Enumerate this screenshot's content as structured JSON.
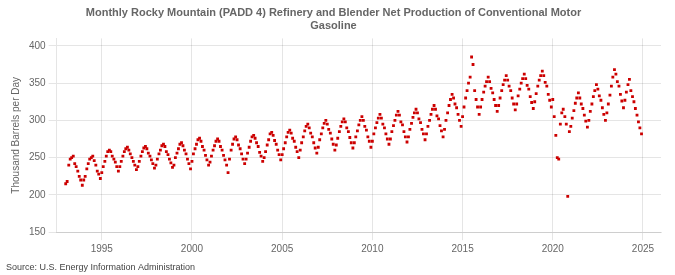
{
  "chart_data": {
    "type": "scatter",
    "title": "Monthly Rocky Mountain (PADD 4) Refinery and Blender Net Production of Conventional Motor\nGasoline",
    "ylabel": "Thousand Barrels per Day",
    "annotations": [
      "Source: U.S. Energy Information Administration"
    ],
    "color": "#cc0000",
    "marker": "square",
    "grid": true,
    "xlim": [
      1992.5,
      2026.0
    ],
    "ylim": [
      150,
      410
    ],
    "xticks": [
      1995,
      2000,
      2005,
      2010,
      2015,
      2020,
      2025
    ],
    "yticks": [
      150,
      200,
      250,
      300,
      350,
      400
    ],
    "x": [
      1993.0,
      1993.08,
      1993.17,
      1993.25,
      1993.33,
      1993.42,
      1993.5,
      1993.58,
      1993.67,
      1993.75,
      1993.83,
      1993.92,
      1994.0,
      1994.08,
      1994.17,
      1994.25,
      1994.33,
      1994.42,
      1994.5,
      1994.58,
      1994.67,
      1994.75,
      1994.83,
      1994.92,
      1995.0,
      1995.08,
      1995.17,
      1995.25,
      1995.33,
      1995.42,
      1995.5,
      1995.58,
      1995.67,
      1995.75,
      1995.83,
      1995.92,
      1996.0,
      1996.08,
      1996.17,
      1996.25,
      1996.33,
      1996.42,
      1996.5,
      1996.58,
      1996.67,
      1996.75,
      1996.83,
      1996.92,
      1997.0,
      1997.08,
      1997.17,
      1997.25,
      1997.33,
      1997.42,
      1997.5,
      1997.58,
      1997.67,
      1997.75,
      1997.83,
      1997.92,
      1998.0,
      1998.08,
      1998.17,
      1998.25,
      1998.33,
      1998.42,
      1998.5,
      1998.58,
      1998.67,
      1998.75,
      1998.83,
      1998.92,
      1999.0,
      1999.08,
      1999.17,
      1999.25,
      1999.33,
      1999.42,
      1999.5,
      1999.58,
      1999.67,
      1999.75,
      1999.83,
      1999.92,
      2000.0,
      2000.08,
      2000.17,
      2000.25,
      2000.33,
      2000.42,
      2000.5,
      2000.58,
      2000.67,
      2000.75,
      2000.83,
      2000.92,
      2001.0,
      2001.08,
      2001.17,
      2001.25,
      2001.33,
      2001.42,
      2001.5,
      2001.58,
      2001.67,
      2001.75,
      2001.83,
      2001.92,
      2002.0,
      2002.08,
      2002.17,
      2002.25,
      2002.33,
      2002.42,
      2002.5,
      2002.58,
      2002.67,
      2002.75,
      2002.83,
      2002.92,
      2003.0,
      2003.08,
      2003.17,
      2003.25,
      2003.33,
      2003.42,
      2003.5,
      2003.58,
      2003.67,
      2003.75,
      2003.83,
      2003.92,
      2004.0,
      2004.08,
      2004.17,
      2004.25,
      2004.33,
      2004.42,
      2004.5,
      2004.58,
      2004.67,
      2004.75,
      2004.83,
      2004.92,
      2005.0,
      2005.08,
      2005.17,
      2005.25,
      2005.33,
      2005.42,
      2005.5,
      2005.58,
      2005.67,
      2005.75,
      2005.83,
      2005.92,
      2006.0,
      2006.08,
      2006.17,
      2006.25,
      2006.33,
      2006.42,
      2006.5,
      2006.58,
      2006.67,
      2006.75,
      2006.83,
      2006.92,
      2007.0,
      2007.08,
      2007.17,
      2007.25,
      2007.33,
      2007.42,
      2007.5,
      2007.58,
      2007.67,
      2007.75,
      2007.83,
      2007.92,
      2008.0,
      2008.08,
      2008.17,
      2008.25,
      2008.33,
      2008.42,
      2008.5,
      2008.58,
      2008.67,
      2008.75,
      2008.83,
      2008.92,
      2009.0,
      2009.08,
      2009.17,
      2009.25,
      2009.33,
      2009.42,
      2009.5,
      2009.58,
      2009.67,
      2009.75,
      2009.83,
      2009.92,
      2010.0,
      2010.08,
      2010.17,
      2010.25,
      2010.33,
      2010.42,
      2010.5,
      2010.58,
      2010.67,
      2010.75,
      2010.83,
      2010.92,
      2011.0,
      2011.08,
      2011.17,
      2011.25,
      2011.33,
      2011.42,
      2011.5,
      2011.58,
      2011.67,
      2011.75,
      2011.83,
      2011.92,
      2012.0,
      2012.08,
      2012.17,
      2012.25,
      2012.33,
      2012.42,
      2012.5,
      2012.58,
      2012.67,
      2012.75,
      2012.83,
      2012.92,
      2013.0,
      2013.08,
      2013.17,
      2013.25,
      2013.33,
      2013.42,
      2013.5,
      2013.58,
      2013.67,
      2013.75,
      2013.83,
      2013.92,
      2014.0,
      2014.08,
      2014.17,
      2014.25,
      2014.33,
      2014.42,
      2014.5,
      2014.58,
      2014.67,
      2014.75,
      2014.83,
      2014.92,
      2015.0,
      2015.08,
      2015.17,
      2015.25,
      2015.33,
      2015.42,
      2015.5,
      2015.58,
      2015.67,
      2015.75,
      2015.83,
      2015.92,
      2016.0,
      2016.08,
      2016.17,
      2016.25,
      2016.33,
      2016.42,
      2016.5,
      2016.58,
      2016.67,
      2016.75,
      2016.83,
      2016.92,
      2017.0,
      2017.08,
      2017.17,
      2017.25,
      2017.33,
      2017.42,
      2017.5,
      2017.58,
      2017.67,
      2017.75,
      2017.83,
      2017.92,
      2018.0,
      2018.08,
      2018.17,
      2018.25,
      2018.33,
      2018.42,
      2018.5,
      2018.58,
      2018.67,
      2018.75,
      2018.83,
      2018.92,
      2019.0,
      2019.08,
      2019.17,
      2019.25,
      2019.33,
      2019.42,
      2019.5,
      2019.58,
      2019.67,
      2019.75,
      2019.83,
      2019.92,
      2020.0,
      2020.08,
      2020.17,
      2020.25,
      2020.33,
      2020.42,
      2020.5,
      2020.58,
      2020.67,
      2020.75,
      2020.83,
      2020.92,
      2021.0,
      2021.08,
      2021.17,
      2021.25,
      2021.33,
      2021.42,
      2021.5,
      2021.58,
      2021.67,
      2021.75,
      2021.83,
      2021.92,
      2022.0,
      2022.08,
      2022.17,
      2022.25,
      2022.33,
      2022.42,
      2022.5,
      2022.58,
      2022.67,
      2022.75,
      2022.83,
      2022.92,
      2023.0,
      2023.08,
      2023.17,
      2023.25,
      2023.33,
      2023.42,
      2023.5,
      2023.58,
      2023.67,
      2023.75,
      2023.83,
      2023.92,
      2024.0,
      2024.08,
      2024.17,
      2024.25,
      2024.33,
      2024.42,
      2024.5,
      2024.58,
      2024.67,
      2024.75,
      2024.83,
      2024.92
    ],
    "values": [
      215,
      218,
      240,
      248,
      250,
      252,
      242,
      238,
      232,
      225,
      220,
      213,
      220,
      225,
      235,
      242,
      248,
      250,
      252,
      246,
      240,
      232,
      228,
      222,
      230,
      238,
      245,
      252,
      258,
      260,
      258,
      252,
      248,
      244,
      238,
      232,
      238,
      245,
      252,
      258,
      262,
      264,
      260,
      255,
      250,
      245,
      240,
      234,
      238,
      245,
      252,
      258,
      263,
      265,
      262,
      256,
      252,
      247,
      242,
      236,
      240,
      248,
      255,
      260,
      266,
      268,
      265,
      258,
      254,
      248,
      243,
      237,
      240,
      250,
      256,
      262,
      268,
      270,
      266,
      260,
      255,
      248,
      242,
      235,
      245,
      255,
      262,
      268,
      274,
      276,
      272,
      265,
      260,
      253,
      247,
      240,
      244,
      252,
      260,
      266,
      272,
      275,
      272,
      265,
      260,
      253,
      247,
      240,
      230,
      248,
      260,
      268,
      275,
      278,
      274,
      267,
      262,
      255,
      248,
      242,
      248,
      256,
      264,
      272,
      278,
      280,
      276,
      270,
      265,
      257,
      252,
      245,
      250,
      258,
      267,
      274,
      282,
      284,
      280,
      273,
      268,
      260,
      254,
      247,
      254,
      262,
      270,
      278,
      284,
      287,
      283,
      276,
      272,
      264,
      258,
      250,
      260,
      270,
      278,
      286,
      292,
      295,
      290,
      283,
      278,
      270,
      263,
      256,
      264,
      274,
      282,
      290,
      296,
      300,
      295,
      288,
      283,
      275,
      268,
      260,
      267,
      276,
      285,
      292,
      298,
      302,
      298,
      290,
      285,
      277,
      270,
      263,
      270,
      278,
      286,
      294,
      300,
      305,
      300,
      292,
      287,
      278,
      272,
      264,
      272,
      282,
      290,
      297,
      303,
      308,
      303,
      295,
      290,
      282,
      275,
      268,
      275,
      285,
      293,
      300,
      307,
      312,
      307,
      298,
      294,
      285,
      278,
      271,
      278,
      288,
      296,
      304,
      310,
      315,
      310,
      302,
      297,
      288,
      282,
      274,
      282,
      292,
      300,
      308,
      315,
      320,
      315,
      306,
      302,
      293,
      286,
      278,
      288,
      300,
      310,
      320,
      328,
      335,
      330,
      322,
      317,
      308,
      300,
      292,
      305,
      318,
      330,
      340,
      350,
      358,
      385,
      375,
      340,
      328,
      318,
      308,
      318,
      328,
      338,
      346,
      352,
      358,
      352,
      343,
      337,
      328,
      320,
      312,
      320,
      330,
      340,
      348,
      354,
      360,
      354,
      346,
      340,
      330,
      322,
      314,
      322,
      333,
      342,
      350,
      356,
      362,
      356,
      347,
      342,
      332,
      324,
      316,
      325,
      336,
      346,
      354,
      360,
      366,
      360,
      351,
      346,
      335,
      327,
      318,
      328,
      305,
      280,
      250,
      248,
      295,
      310,
      315,
      305,
      295,
      198,
      285,
      292,
      303,
      313,
      323,
      330,
      337,
      330,
      322,
      316,
      307,
      299,
      291,
      300,
      312,
      322,
      332,
      340,
      348,
      342,
      333,
      327,
      317,
      308,
      300,
      310,
      322,
      334,
      346,
      358,
      368,
      362,
      352,
      346,
      335,
      326,
      317,
      327,
      338,
      348,
      355,
      340,
      332,
      325,
      316,
      307,
      298,
      290,
      282
    ]
  }
}
